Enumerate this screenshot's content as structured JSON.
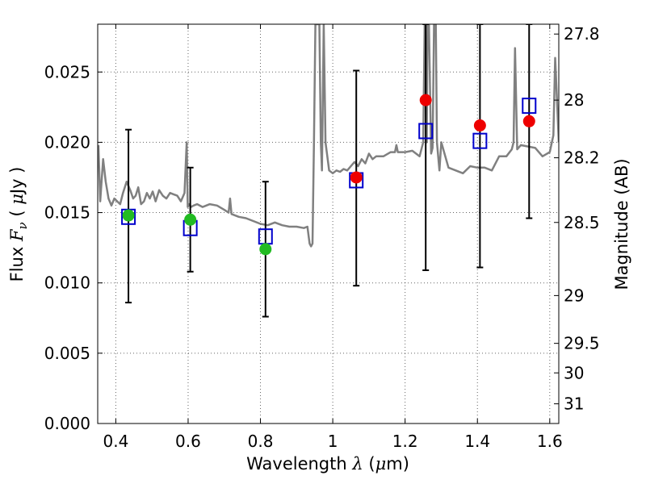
{
  "chart_data": {
    "type": "scatter",
    "xlabel": "Wavelength",
    "xlabel_symbol": "λ",
    "xlabel_unit_open": "(",
    "xlabel_unit_mu": "μ",
    "xlabel_unit_rest": "m)",
    "ylabel": "Flux",
    "ylabel_symbol": "F",
    "ylabel_subscript": "ν",
    "ylabel_unit_open": "(",
    "ylabel_unit_mu": "μ",
    "ylabel_unit_rest": "Jy )",
    "y2label": "Magnitude (AB)",
    "xlim": [
      0.35,
      1.625
    ],
    "ylim": [
      0.0,
      0.0284
    ],
    "x_ticks": [
      0.4,
      0.6,
      0.8,
      1.0,
      1.2,
      1.4,
      1.6
    ],
    "x_tick_labels": [
      "0.4",
      "0.6",
      "0.8",
      "1",
      "1.2",
      "1.4",
      "1.6"
    ],
    "y_ticks": [
      0.0,
      0.005,
      0.01,
      0.015,
      0.02,
      0.025
    ],
    "y_tick_labels": [
      "0.000",
      "0.005",
      "0.010",
      "0.015",
      "0.020",
      "0.025"
    ],
    "y2_ticks": [
      {
        "label": "27.8",
        "flux": 0.0277
      },
      {
        "label": "28",
        "flux": 0.023
      },
      {
        "label": "28.2",
        "flux": 0.0189
      },
      {
        "label": "28.5",
        "flux": 0.0143
      },
      {
        "label": "29",
        "flux": 0.0091
      },
      {
        "label": "29.5",
        "flux": 0.0057
      },
      {
        "label": "30",
        "flux": 0.0036
      },
      {
        "label": "31",
        "flux": 0.0014
      }
    ],
    "grid": true,
    "colors": {
      "model_spectrum": "#808080",
      "observed_blue": "#22bb22",
      "observed_red": "#ee0000",
      "model_photometry": "#0000cc",
      "error_bars": "#000000"
    },
    "series": [
      {
        "name": "model spectrum",
        "kind": "line",
        "x": [
          0.352,
          0.357,
          0.365,
          0.372,
          0.38,
          0.388,
          0.396,
          0.404,
          0.412,
          0.42,
          0.43,
          0.44,
          0.448,
          0.455,
          0.462,
          0.47,
          0.478,
          0.486,
          0.494,
          0.502,
          0.51,
          0.52,
          0.53,
          0.54,
          0.55,
          0.56,
          0.57,
          0.58,
          0.59,
          0.596,
          0.599,
          0.603,
          0.608,
          0.615,
          0.625,
          0.64,
          0.66,
          0.68,
          0.7,
          0.712,
          0.716,
          0.72,
          0.74,
          0.76,
          0.78,
          0.8,
          0.82,
          0.84,
          0.86,
          0.88,
          0.9,
          0.92,
          0.93,
          0.936,
          0.94,
          0.944,
          0.948,
          0.952,
          0.956,
          0.96,
          0.963,
          0.967,
          0.97,
          0.975,
          0.98,
          0.99,
          1.0,
          1.01,
          1.02,
          1.03,
          1.04,
          1.05,
          1.06,
          1.07,
          1.08,
          1.09,
          1.1,
          1.11,
          1.12,
          1.14,
          1.16,
          1.172,
          1.176,
          1.18,
          1.2,
          1.22,
          1.24,
          1.25,
          1.254,
          1.256,
          1.258,
          1.26,
          1.262,
          1.266,
          1.272,
          1.276,
          1.28,
          1.285,
          1.288,
          1.295,
          1.3,
          1.32,
          1.34,
          1.36,
          1.38,
          1.4,
          1.42,
          1.44,
          1.46,
          1.48,
          1.495,
          1.5,
          1.504,
          1.51,
          1.52,
          1.54,
          1.56,
          1.58,
          1.6,
          1.61,
          1.615,
          1.62,
          1.625
        ],
        "y": [
          0.0198,
          0.0158,
          0.0188,
          0.0172,
          0.016,
          0.0155,
          0.016,
          0.0158,
          0.0156,
          0.0164,
          0.0172,
          0.0166,
          0.016,
          0.0162,
          0.0168,
          0.0156,
          0.0158,
          0.0164,
          0.016,
          0.0165,
          0.0158,
          0.0166,
          0.0162,
          0.016,
          0.0164,
          0.0163,
          0.0162,
          0.0158,
          0.0164,
          0.02,
          0.0154,
          0.0156,
          0.0154,
          0.0155,
          0.0156,
          0.0154,
          0.0156,
          0.0155,
          0.0152,
          0.015,
          0.016,
          0.0149,
          0.0147,
          0.0146,
          0.0144,
          0.0142,
          0.0141,
          0.0143,
          0.0141,
          0.014,
          0.014,
          0.0139,
          0.014,
          0.0128,
          0.0126,
          0.0128,
          0.02,
          0.0284,
          0.0284,
          0.0284,
          0.0284,
          0.02,
          0.018,
          0.0284,
          0.02,
          0.018,
          0.0178,
          0.018,
          0.0179,
          0.0181,
          0.018,
          0.0183,
          0.0186,
          0.0183,
          0.0188,
          0.0185,
          0.0192,
          0.0188,
          0.019,
          0.019,
          0.0193,
          0.0193,
          0.0198,
          0.0193,
          0.0193,
          0.0194,
          0.019,
          0.02,
          0.0284,
          0.0284,
          0.02,
          0.02,
          0.0284,
          0.0284,
          0.0192,
          0.0196,
          0.0284,
          0.0284,
          0.02,
          0.018,
          0.02,
          0.0182,
          0.018,
          0.0178,
          0.0183,
          0.0182,
          0.0182,
          0.018,
          0.019,
          0.019,
          0.0195,
          0.02,
          0.0267,
          0.0195,
          0.0198,
          0.0197,
          0.0196,
          0.019,
          0.0193,
          0.0205,
          0.026,
          0.023,
          0.02
        ]
      },
      {
        "name": "observed photometry (blue bands)",
        "kind": "points",
        "marker": "circle",
        "x": [
          0.435,
          0.606,
          0.814
        ],
        "y": [
          0.0148,
          0.0145,
          0.0124
        ]
      },
      {
        "name": "observed photometry (IR bands)",
        "kind": "points",
        "marker": "circle",
        "x": [
          1.065,
          1.257,
          1.407,
          1.543
        ],
        "y": [
          0.0175,
          0.023,
          0.0212,
          0.0215
        ]
      },
      {
        "name": "model photometry",
        "kind": "points",
        "marker": "open-square",
        "x": [
          0.435,
          0.606,
          0.814,
          1.065,
          1.257,
          1.407,
          1.543
        ],
        "y": [
          0.0147,
          0.0139,
          0.0133,
          0.0173,
          0.0208,
          0.0201,
          0.0226
        ]
      },
      {
        "name": "flux uncertainties",
        "kind": "errorbars",
        "x": [
          0.435,
          0.606,
          0.814,
          1.065,
          1.257,
          1.407,
          1.543
        ],
        "low": [
          0.0086,
          0.0108,
          0.0076,
          0.0098,
          0.0109,
          0.0111,
          0.0146
        ],
        "high": [
          0.0209,
          0.0182,
          0.0172,
          0.0251,
          0.0284,
          0.0284,
          0.0284
        ]
      }
    ]
  }
}
